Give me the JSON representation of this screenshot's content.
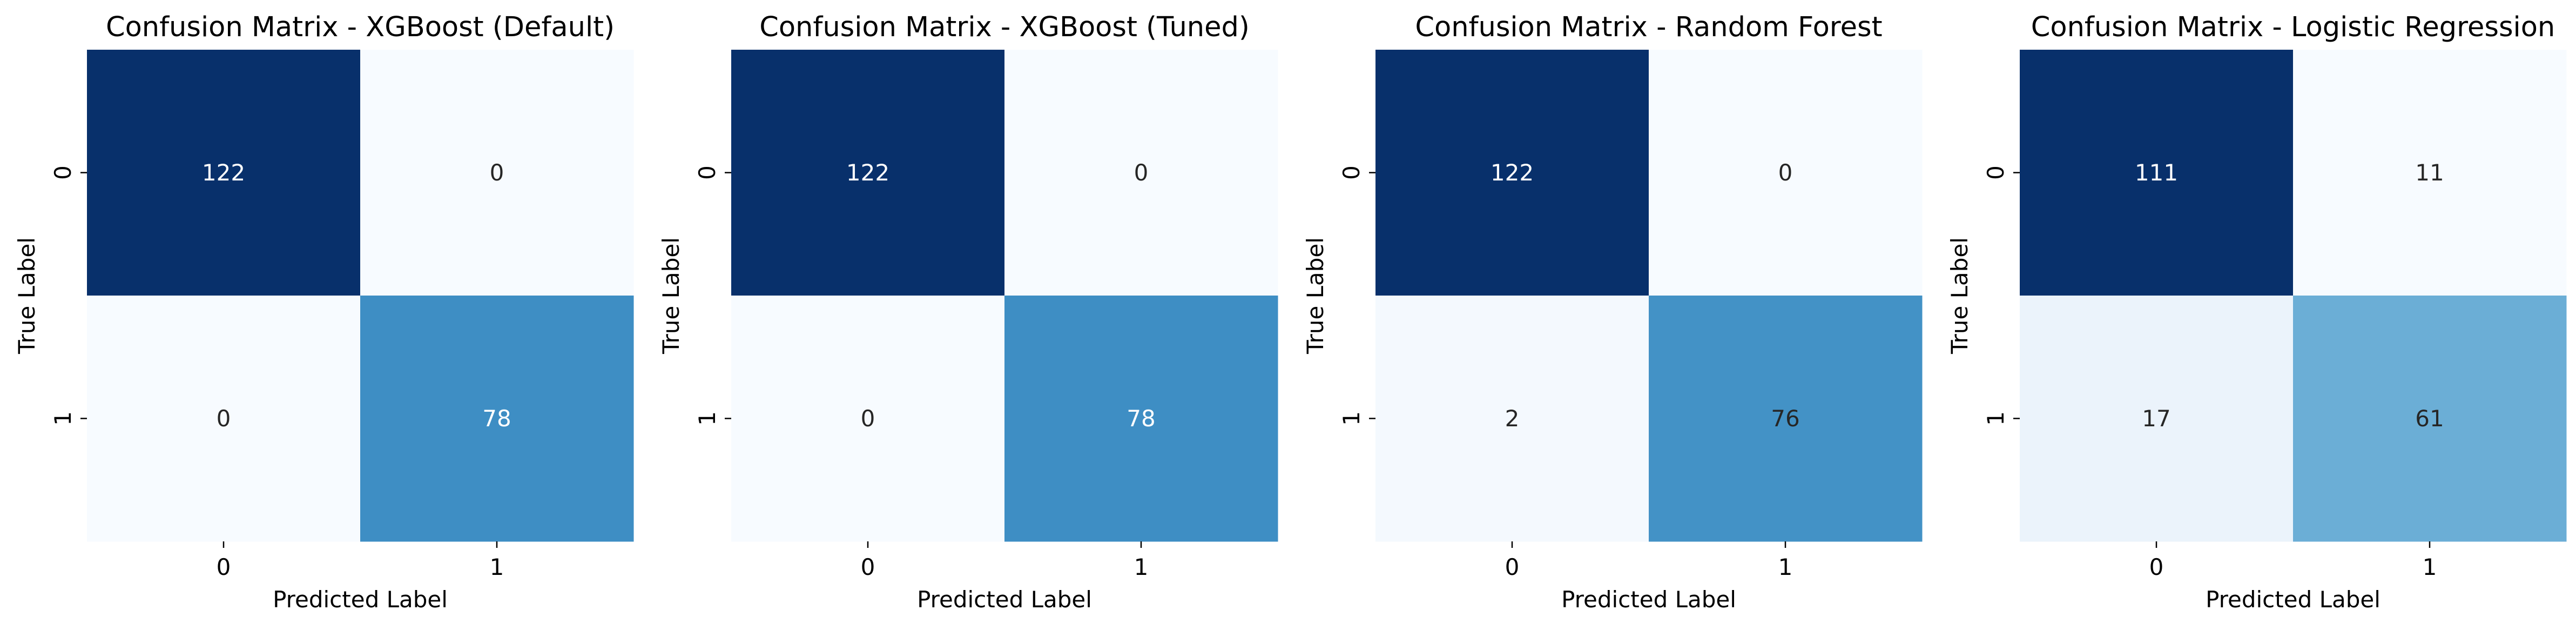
{
  "chart_data": [
    {
      "type": "heatmap",
      "title": "Confusion Matrix - XGBoost (Default)",
      "xlabel": "Predicted Label",
      "ylabel": "True Label",
      "x_categories": [
        "0",
        "1"
      ],
      "y_categories": [
        "0",
        "1"
      ],
      "values": [
        [
          122,
          0
        ],
        [
          0,
          78
        ]
      ],
      "colormap": "Blues",
      "colorbar": false,
      "grid": false
    },
    {
      "type": "heatmap",
      "title": "Confusion Matrix - XGBoost (Tuned)",
      "xlabel": "Predicted Label",
      "ylabel": "True Label",
      "x_categories": [
        "0",
        "1"
      ],
      "y_categories": [
        "0",
        "1"
      ],
      "values": [
        [
          122,
          0
        ],
        [
          0,
          78
        ]
      ],
      "colormap": "Blues",
      "colorbar": false,
      "grid": false
    },
    {
      "type": "heatmap",
      "title": "Confusion Matrix - Random Forest",
      "xlabel": "Predicted Label",
      "ylabel": "True Label",
      "x_categories": [
        "0",
        "1"
      ],
      "y_categories": [
        "0",
        "1"
      ],
      "values": [
        [
          122,
          0
        ],
        [
          2,
          76
        ]
      ],
      "colormap": "Blues",
      "colorbar": false,
      "grid": false
    },
    {
      "type": "heatmap",
      "title": "Confusion Matrix - Logistic Regression",
      "xlabel": "Predicted Label",
      "ylabel": "True Label",
      "x_categories": [
        "0",
        "1"
      ],
      "y_categories": [
        "0",
        "1"
      ],
      "values": [
        [
          111,
          11
        ],
        [
          17,
          61
        ]
      ],
      "colormap": "Blues",
      "colorbar": false,
      "grid": false
    }
  ],
  "colors": {
    "blues_scale": [
      "#f7fbff",
      "#deebf7",
      "#c6dbef",
      "#9ecae1",
      "#6baed6",
      "#4292c6",
      "#2171b5",
      "#08519c",
      "#08306b"
    ],
    "text_on_light": "#262626",
    "text_on_dark": "#ffffff"
  }
}
